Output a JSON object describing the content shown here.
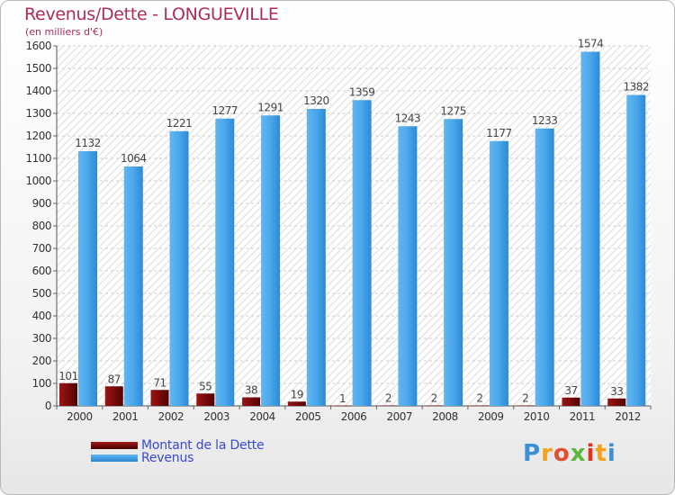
{
  "header": {
    "title": "Revenus/Dette - LONGUEVILLE",
    "subtitle": "(en milliers d'€)"
  },
  "colors": {
    "debt": "#7a0a0a",
    "revenue": "#3f9fe4",
    "title": "#b02a5a",
    "legend_text": "#3a48d8"
  },
  "legend": {
    "debt_label": "Montant de la Dette",
    "revenue_label": "Revenus"
  },
  "logo": {
    "text": "Proxiti"
  },
  "chart_data": {
    "type": "bar",
    "title": "Revenus/Dette - LONGUEVILLE",
    "subtitle": "(en milliers d'€)",
    "categories": [
      "2000",
      "2001",
      "2002",
      "2003",
      "2004",
      "2005",
      "2006",
      "2007",
      "2008",
      "2009",
      "2010",
      "2011",
      "2012"
    ],
    "series": [
      {
        "name": "Montant de la Dette",
        "values": [
          101,
          87,
          71,
          55,
          38,
          19,
          1,
          2,
          2,
          2,
          2,
          37,
          33
        ]
      },
      {
        "name": "Revenus",
        "values": [
          1132,
          1064,
          1221,
          1277,
          1291,
          1320,
          1359,
          1243,
          1275,
          1177,
          1233,
          1574,
          1382
        ]
      }
    ],
    "ylim": [
      0,
      1600
    ],
    "yticks": [
      0,
      100,
      200,
      300,
      400,
      500,
      600,
      700,
      800,
      900,
      1000,
      1100,
      1200,
      1300,
      1400,
      1500,
      1600
    ],
    "grid": true,
    "legend_position": "bottom-left"
  }
}
